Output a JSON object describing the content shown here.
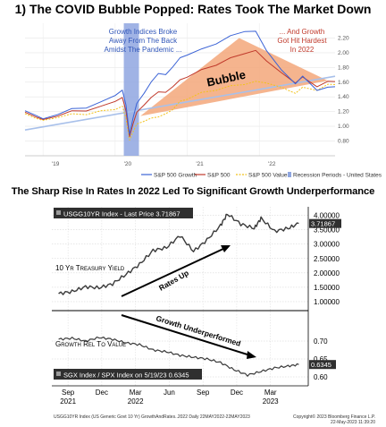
{
  "titles": {
    "top": "1) The COVID Bubble Popped: Rates Took The Market Down",
    "bottom": "The Sharp Rise In Rates In 2022 Led To Significant Growth Underperformance"
  },
  "colors": {
    "sp500_growth": "#3b63d6",
    "sp500": "#c0392b",
    "sp500_value": "#f2c21b",
    "recession": "#8fa6e0",
    "bubble_fill": "#f3a77a",
    "bubble_line": "#a8c0ea",
    "bloomberg_line": "#3a3a3a",
    "label_box": "#2f2f2f"
  },
  "chart_data": [
    {
      "type": "line",
      "annotations": {
        "left": [
          "Growth Indices Broke",
          "Away From The Back",
          "Amidst The Pandemic ..."
        ],
        "right": [
          "... And Growth",
          "Got Hit Hardest",
          "In 2022"
        ],
        "bubble": "Bubble"
      },
      "x_tick_labels": [
        "'19",
        "'20",
        "'21",
        "'22"
      ],
      "y_tick_labels": [
        "2.20",
        "2.00",
        "1.80",
        "1.60",
        "1.40",
        "1.20",
        "1.00",
        "0.80"
      ],
      "legend": [
        "S&P 500 Growth",
        "S&P 500",
        "S&P 500 Value",
        "Recession Periods - United States"
      ],
      "x_range": [
        2018.75,
        2023.05
      ],
      "y_range": [
        0.6,
        2.4
      ],
      "recession_band": [
        2020.12,
        2020.33
      ],
      "series": [
        {
          "name": "S&P 500 Growth",
          "x": [
            2018.75,
            2018.9,
            2019.0,
            2019.2,
            2019.4,
            2019.6,
            2019.8,
            2020.0,
            2020.1,
            2020.15,
            2020.2,
            2020.25,
            2020.3,
            2020.4,
            2020.5,
            2020.6,
            2020.7,
            2020.8,
            2020.9,
            2021.0,
            2021.2,
            2021.4,
            2021.6,
            2021.8,
            2021.95,
            2022.1,
            2022.3,
            2022.5,
            2022.6,
            2022.8,
            2022.95,
            2023.05
          ],
          "y": [
            1.2,
            1.16,
            1.09,
            1.17,
            1.23,
            1.26,
            1.32,
            1.43,
            1.48,
            1.3,
            0.88,
            1.13,
            1.3,
            1.46,
            1.59,
            1.73,
            1.69,
            1.82,
            1.92,
            1.98,
            2.04,
            2.13,
            2.22,
            2.3,
            2.28,
            2.04,
            1.76,
            1.59,
            1.67,
            1.5,
            1.52,
            1.55
          ]
        },
        {
          "name": "S&P 500",
          "x": [
            2018.75,
            2018.9,
            2019.0,
            2019.2,
            2019.4,
            2019.6,
            2019.8,
            2020.0,
            2020.1,
            2020.15,
            2020.2,
            2020.25,
            2020.3,
            2020.4,
            2020.5,
            2020.6,
            2020.7,
            2020.8,
            2020.9,
            2021.0,
            2021.2,
            2021.4,
            2021.6,
            2021.8,
            2021.95,
            2022.1,
            2022.3,
            2022.5,
            2022.6,
            2022.8,
            2022.95,
            2023.05
          ],
          "y": [
            1.18,
            1.14,
            1.08,
            1.15,
            1.2,
            1.22,
            1.26,
            1.35,
            1.38,
            1.22,
            0.85,
            1.05,
            1.18,
            1.3,
            1.38,
            1.48,
            1.45,
            1.55,
            1.62,
            1.68,
            1.76,
            1.84,
            1.92,
            2.0,
            2.02,
            1.9,
            1.72,
            1.6,
            1.66,
            1.55,
            1.6,
            1.62
          ]
        },
        {
          "name": "S&P 500 Value",
          "x": [
            2018.75,
            2018.9,
            2019.0,
            2019.2,
            2019.4,
            2019.6,
            2019.8,
            2020.0,
            2020.1,
            2020.15,
            2020.2,
            2020.25,
            2020.3,
            2020.4,
            2020.5,
            2020.6,
            2020.7,
            2020.8,
            2020.9,
            2021.0,
            2021.2,
            2021.4,
            2021.6,
            2021.8,
            2021.95,
            2022.1,
            2022.3,
            2022.5,
            2022.6,
            2022.8,
            2022.95,
            2023.05
          ],
          "y": [
            1.16,
            1.12,
            1.07,
            1.13,
            1.16,
            1.17,
            1.2,
            1.24,
            1.26,
            1.12,
            0.8,
            0.94,
            1.02,
            1.08,
            1.1,
            1.14,
            1.16,
            1.24,
            1.33,
            1.38,
            1.45,
            1.5,
            1.54,
            1.58,
            1.6,
            1.6,
            1.52,
            1.46,
            1.52,
            1.5,
            1.56,
            1.58
          ]
        }
      ]
    },
    {
      "type": "line",
      "top_panel": {
        "label_box": "USGG10YR Index - Last Price 3.71867",
        "axis_label": "10 Yr Treasury Yield",
        "last_value": "3.71867",
        "y_tick_labels": [
          "4.00000",
          "3.50000",
          "3.00000",
          "2.50000",
          "2.00000",
          "1.50000",
          "1.00000"
        ],
        "y_range": [
          0.75,
          4.3
        ],
        "annotation": "Rates Up",
        "x": [
          2021.6,
          2021.7,
          2021.8,
          2021.9,
          2022.0,
          2022.1,
          2022.2,
          2022.3,
          2022.4,
          2022.5,
          2022.6,
          2022.7,
          2022.8,
          2022.85,
          2022.95,
          2023.05,
          2023.1,
          2023.2,
          2023.3,
          2023.38
        ],
        "y": [
          1.28,
          1.35,
          1.52,
          1.48,
          1.62,
          1.95,
          2.3,
          2.78,
          2.88,
          3.3,
          2.75,
          3.15,
          3.65,
          4.05,
          3.7,
          3.55,
          3.9,
          3.45,
          3.55,
          3.72
        ]
      },
      "bottom_panel": {
        "label_box": "SGX Index / SPX Index on 5/19/23 0.6345",
        "axis_label": "Growth Rel To Value",
        "last_value": "0.6345",
        "y_tick_labels": [
          "0.70",
          "0.65",
          "0.60"
        ],
        "y_range": [
          0.575,
          0.78
        ],
        "annotation": "Growth Underperformed",
        "x": [
          2021.6,
          2021.7,
          2021.8,
          2021.9,
          2022.0,
          2022.1,
          2022.2,
          2022.3,
          2022.4,
          2022.5,
          2022.6,
          2022.7,
          2022.8,
          2022.9,
          2023.0,
          2023.1,
          2023.2,
          2023.3,
          2023.38
        ],
        "y": [
          0.705,
          0.708,
          0.7,
          0.71,
          0.705,
          0.695,
          0.69,
          0.675,
          0.67,
          0.66,
          0.655,
          0.65,
          0.64,
          0.62,
          0.605,
          0.615,
          0.625,
          0.63,
          0.6345
        ]
      },
      "x_tick_labels": [
        "Sep",
        "Dec",
        "Mar",
        "Jun",
        "Sep",
        "Dec",
        "Mar"
      ],
      "x_year_labels": [
        "2021",
        "2022",
        "2023"
      ],
      "x_range": [
        2021.55,
        2023.45
      ],
      "footer_left": "USGG10YR Index (US Generic Govt 10 Yr) GrowthAndRates..2022 Daily 22MAY2022-22MAY2023",
      "footer_right": [
        "Copyright© 2023 Bloomberg Finance L.P.",
        "22-May-2023 11:39:20"
      ]
    }
  ]
}
